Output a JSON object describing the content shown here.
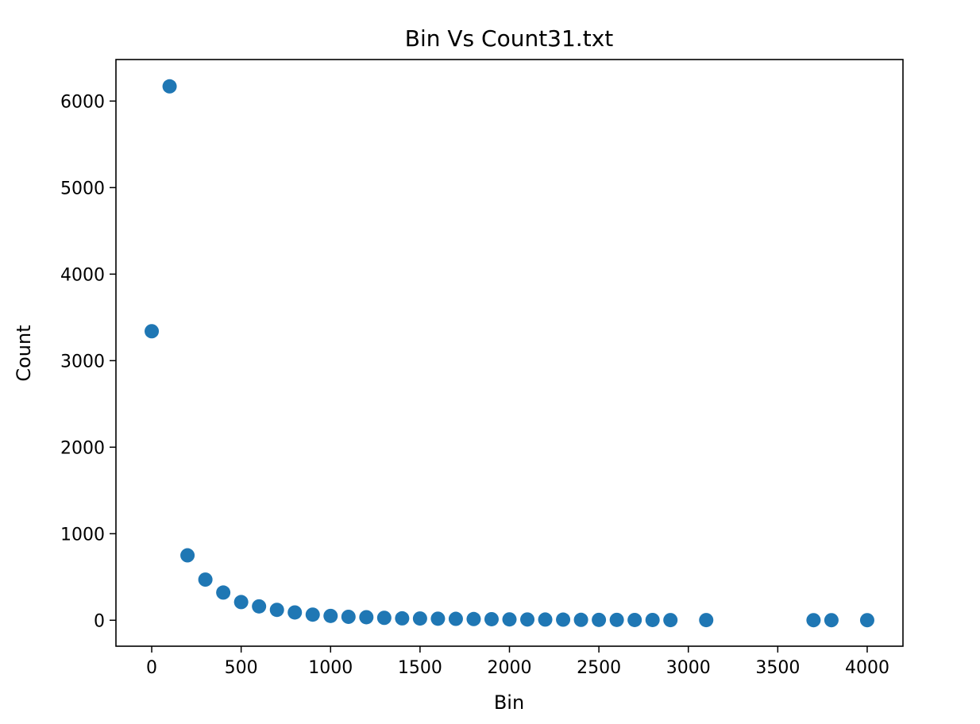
{
  "chart_data": {
    "type": "scatter",
    "title": "Bin Vs Count31.txt",
    "xlabel": "Bin",
    "ylabel": "Count",
    "xlim": [
      -200,
      4200
    ],
    "ylim": [
      -300,
      6480
    ],
    "xticks": [
      0,
      500,
      1000,
      1500,
      2000,
      2500,
      3000,
      3500,
      4000
    ],
    "yticks": [
      0,
      1000,
      2000,
      3000,
      4000,
      5000,
      6000
    ],
    "grid": false,
    "marker_color": "#1f77b4",
    "series": [
      {
        "x": [
          0,
          100,
          200,
          300,
          400,
          500,
          600,
          700,
          800,
          900,
          1000,
          1100,
          1200,
          1300,
          1400,
          1500,
          1600,
          1700,
          1800,
          1900,
          2000,
          2100,
          2200,
          2300,
          2400,
          2500,
          2600,
          2700,
          2800,
          2900,
          3100,
          3700,
          3800,
          4000
        ],
        "y": [
          3340,
          6170,
          750,
          470,
          320,
          210,
          160,
          120,
          90,
          65,
          50,
          40,
          35,
          28,
          22,
          20,
          18,
          16,
          14,
          12,
          10,
          9,
          8,
          7,
          5,
          4,
          4,
          3,
          3,
          2,
          2,
          1,
          1,
          1
        ]
      }
    ]
  }
}
